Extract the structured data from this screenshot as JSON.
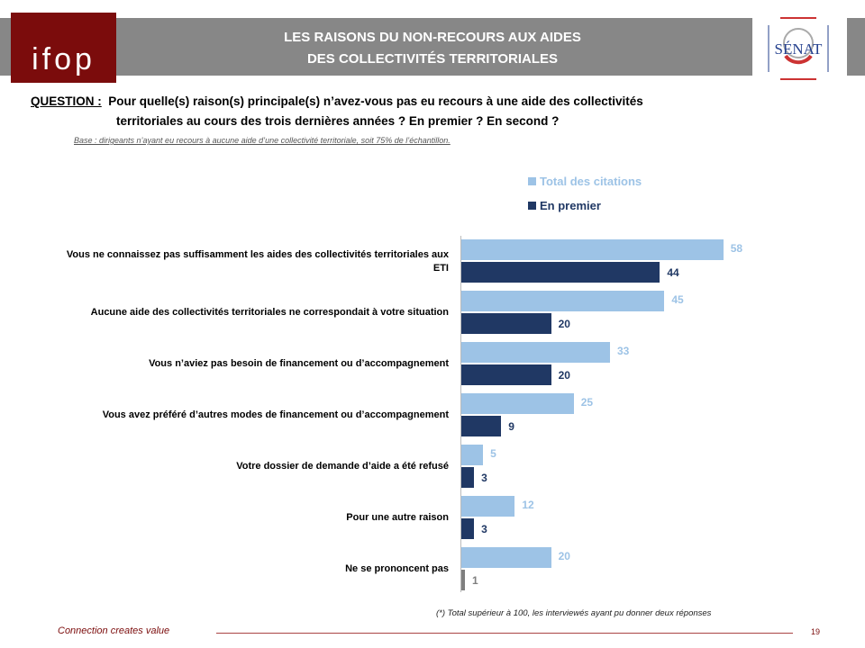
{
  "header": {
    "logo_left": "ifop",
    "title_line1": "LES RAISONS DU NON-RECOURS AUX AIDES",
    "title_line2": "DES COLLECTIVITÉS TERRITORIALES",
    "logo_right": "SÉNAT"
  },
  "question": {
    "label": "QUESTION :",
    "line1": "Pour quelle(s) raison(s) principale(s) n’avez-vous pas eu recours à une aide des collectivités",
    "line2": "territoriales au cours des trois dernières années ? En premier ? En second ?",
    "base": "Base : dirigeants n’ayant eu recours à aucune aide d’une collectivité territoriale, soit 75% de l’échantillon."
  },
  "chart_data": {
    "type": "bar",
    "orientation": "horizontal",
    "categories": [
      "Vous ne connaissez pas suffisamment les aides des collectivités territoriales aux ETI",
      "Aucune aide des collectivités territoriales ne correspondait à votre situation",
      "Vous n’aviez pas besoin de financement ou d’accompagnement",
      "Vous avez préféré d’autres modes de financement ou d’accompagnement",
      "Votre dossier de demande d’aide a été refusé",
      "Pour une autre raison",
      "Ne se prononcent pas"
    ],
    "series": [
      {
        "name": "Total des citations",
        "color": "#9dc3e6",
        "values": [
          58,
          45,
          33,
          25,
          5,
          12,
          20
        ]
      },
      {
        "name": "En premier",
        "color": "#203864",
        "values": [
          44,
          20,
          20,
          9,
          3,
          3,
          1
        ]
      }
    ],
    "legend": "top-right",
    "xlim": [
      0,
      100
    ]
  },
  "footer": {
    "note": "(*) Total supérieur à 100, les interviewés ayant pu donner deux réponses",
    "tagline": "Connection creates value",
    "page": "19"
  }
}
